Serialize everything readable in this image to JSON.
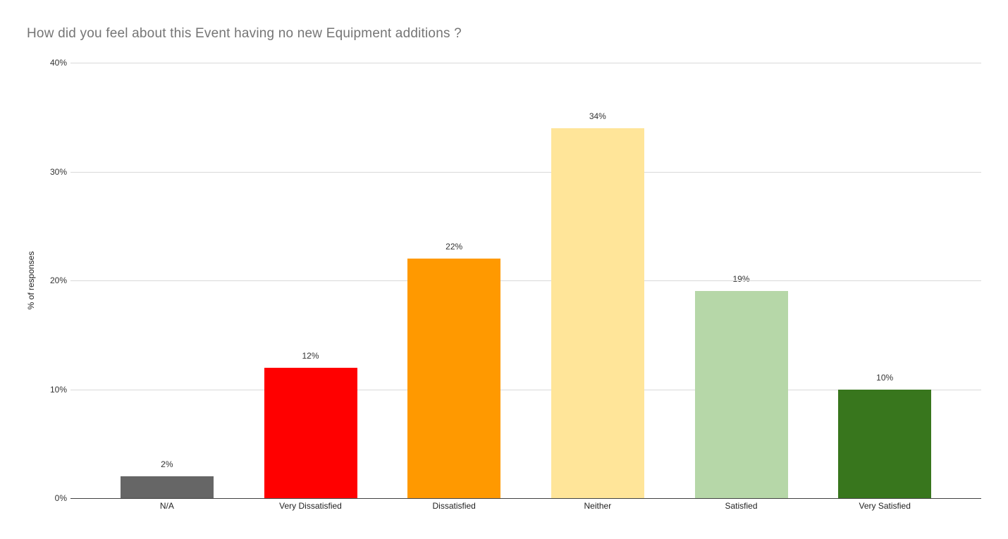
{
  "title": "How did you feel about this Event having no new Equipment additions ?",
  "chart_data": {
    "type": "bar",
    "title": "How did you feel about this Event having no new Equipment additions ?",
    "categories": [
      "N/A",
      "Very Dissatisfied",
      "Dissatisfied",
      "Neither",
      "Satisfied",
      "Very Satisfied"
    ],
    "values": [
      2,
      12,
      22,
      34,
      19,
      10
    ],
    "value_labels": [
      "2%",
      "12%",
      "22%",
      "34%",
      "19%",
      "10%"
    ],
    "bar_colors": [
      "#666666",
      "#ff0000",
      "#ff9900",
      "#ffe599",
      "#b6d7a8",
      "#38761d"
    ],
    "xlabel": "",
    "ylabel": "% of responses",
    "ylim": [
      0,
      40
    ],
    "yticks": [
      {
        "value": 0,
        "label": "0%"
      },
      {
        "value": 10,
        "label": "10%"
      },
      {
        "value": 20,
        "label": "20%"
      },
      {
        "value": 30,
        "label": "30%"
      },
      {
        "value": 40,
        "label": "40%"
      }
    ],
    "grid": true,
    "legend": "none"
  },
  "colors": {
    "background": "#ffffff",
    "title_text": "#757575",
    "axis_text": "#333333",
    "gridline": "#d9d9d9",
    "baseline": "#424242"
  }
}
